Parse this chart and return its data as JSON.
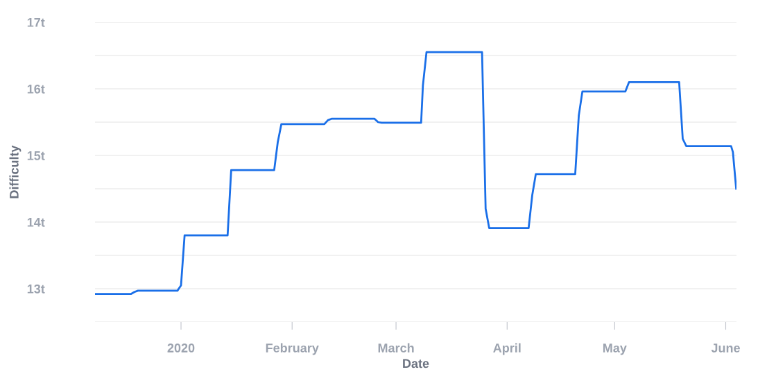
{
  "chart_data": {
    "type": "line",
    "xlabel": "Date",
    "ylabel": "Difficulty",
    "x": [
      "2019-12-08",
      "2019-12-18",
      "2019-12-19",
      "2019-12-20",
      "2019-12-31",
      "2020-01-01",
      "2020-01-02",
      "2020-01-14",
      "2020-01-15",
      "2020-01-27",
      "2020-01-28",
      "2020-01-29",
      "2020-02-10",
      "2020-02-11",
      "2020-02-12",
      "2020-02-24",
      "2020-02-25",
      "2020-02-26",
      "2020-03-08",
      "2020-03-08T12:00",
      "2020-03-09T12:00",
      "2020-03-25",
      "2020-03-26",
      "2020-03-27",
      "2020-04-07",
      "2020-04-08",
      "2020-04-09",
      "2020-04-20",
      "2020-04-21",
      "2020-04-22",
      "2020-05-04",
      "2020-05-05",
      "2020-05-19",
      "2020-05-20",
      "2020-05-21",
      "2020-06-02T12:00",
      "2020-06-03",
      "2020-06-03T22:00"
    ],
    "series": [
      {
        "color": "#1a6fe8",
        "values": [
          12.92,
          12.92,
          12.95,
          12.97,
          12.97,
          13.05,
          13.8,
          13.8,
          14.78,
          14.78,
          15.2,
          15.47,
          15.47,
          15.53,
          15.55,
          15.55,
          15.5,
          15.49,
          15.49,
          16.05,
          16.55,
          16.55,
          14.2,
          13.91,
          13.91,
          14.4,
          14.72,
          14.72,
          15.6,
          15.96,
          15.96,
          16.1,
          16.1,
          15.25,
          15.14,
          15.14,
          15.05,
          14.5
        ]
      }
    ],
    "xlim": [
      "2019-12-08",
      "2020-06-04"
    ],
    "xticks": [
      {
        "value": "2020-01-01",
        "label": "2020"
      },
      {
        "value": "2020-02-01",
        "label": "February"
      },
      {
        "value": "2020-03-01",
        "label": "March"
      },
      {
        "value": "2020-04-01",
        "label": "April"
      },
      {
        "value": "2020-05-01",
        "label": "May"
      },
      {
        "value": "2020-06-01",
        "label": "June"
      }
    ],
    "ylim": [
      12.5,
      17
    ],
    "yticks": [
      {
        "value": 12.5,
        "label": null
      },
      {
        "value": 13,
        "label": "13t"
      },
      {
        "value": 13.5,
        "label": null
      },
      {
        "value": 14,
        "label": "14t"
      },
      {
        "value": 14.5,
        "label": null
      },
      {
        "value": 15,
        "label": "15t"
      },
      {
        "value": 15.5,
        "label": null
      },
      {
        "value": 16,
        "label": "16t"
      },
      {
        "value": 16.5,
        "label": null
      },
      {
        "value": 17,
        "label": "17t"
      }
    ],
    "grid": "y",
    "marker": "none",
    "line_style": "solid",
    "legend": false
  }
}
